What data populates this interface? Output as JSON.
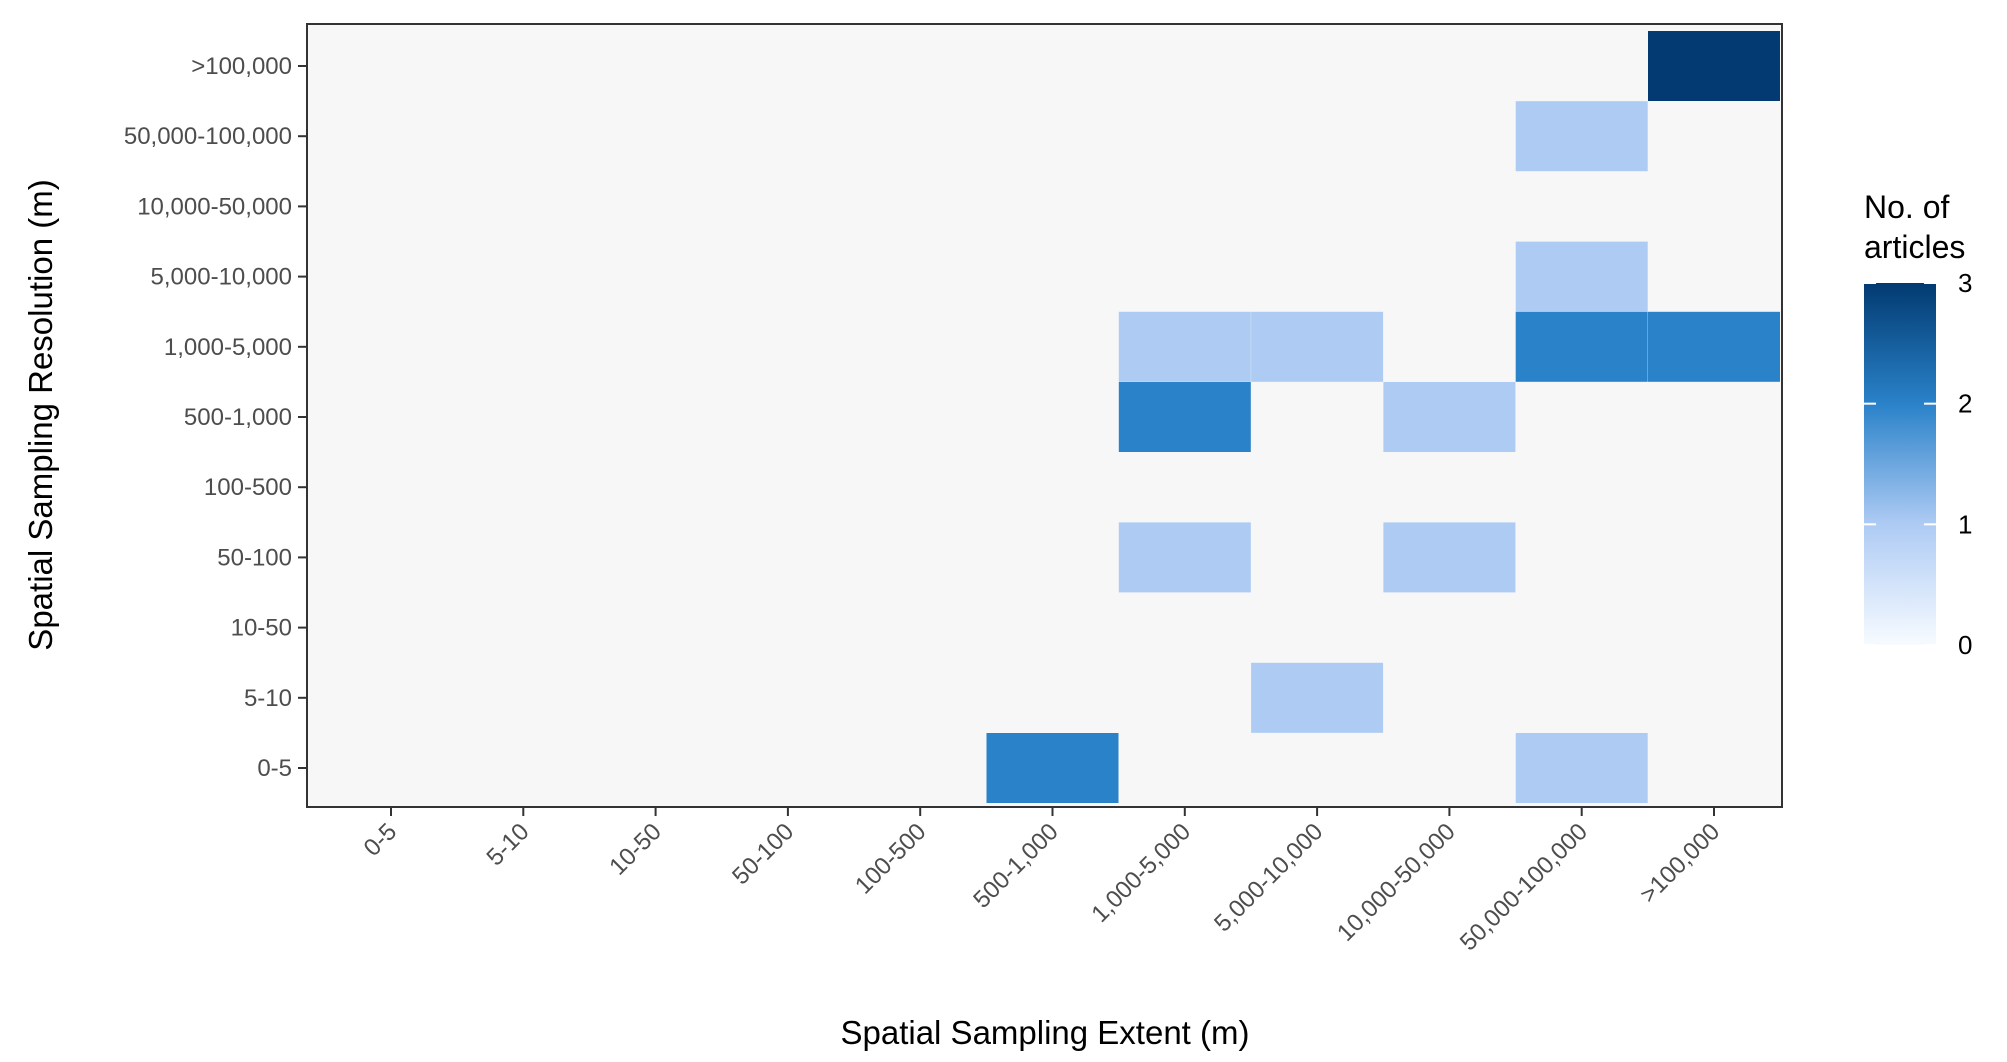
{
  "chart_data": {
    "type": "heatmap",
    "title": "",
    "xlabel": "Spatial Sampling Extent (m)",
    "ylabel": "Spatial Sampling Resolution (m)",
    "x_categories": [
      "0-5",
      "5-10",
      "10-50",
      "50-100",
      "100-500",
      "500-1,000",
      "1,000-5,000",
      "5,000-10,000",
      "10,000-50,000",
      "50,000-100,000",
      ">100,000"
    ],
    "y_categories": [
      "0-5",
      "5-10",
      "10-50",
      "50-100",
      "100-500",
      "500-1,000",
      "1,000-5,000",
      "5,000-10,000",
      "10,000-50,000",
      "50,000-100,000",
      ">100,000"
    ],
    "cells": [
      {
        "x": ">100,000",
        "y": ">100,000",
        "value": 3
      },
      {
        "x": "50,000-100,000",
        "y": "50,000-100,000",
        "value": 1
      },
      {
        "x": "50,000-100,000",
        "y": "5,000-10,000",
        "value": 1
      },
      {
        "x": "1,000-5,000",
        "y": "1,000-5,000",
        "value": 1
      },
      {
        "x": "5,000-10,000",
        "y": "1,000-5,000",
        "value": 1
      },
      {
        "x": "50,000-100,000",
        "y": "1,000-5,000",
        "value": 2
      },
      {
        "x": ">100,000",
        "y": "1,000-5,000",
        "value": 2
      },
      {
        "x": "1,000-5,000",
        "y": "500-1,000",
        "value": 2
      },
      {
        "x": "10,000-50,000",
        "y": "500-1,000",
        "value": 1
      },
      {
        "x": "1,000-5,000",
        "y": "50-100",
        "value": 1
      },
      {
        "x": "10,000-50,000",
        "y": "50-100",
        "value": 1
      },
      {
        "x": "5,000-10,000",
        "y": "5-10",
        "value": 1
      },
      {
        "x": "500-1,000",
        "y": "0-5",
        "value": 2
      },
      {
        "x": "50,000-100,000",
        "y": "0-5",
        "value": 1
      }
    ],
    "legend": {
      "title": "No. of articles",
      "title_lines": [
        "No. of",
        "articles"
      ],
      "ticks": [
        0,
        1,
        2,
        3
      ],
      "range": [
        0,
        3
      ],
      "placement": "right"
    },
    "colors": {
      "panel_background": "#f7f7f7",
      "panel_border": "#333333",
      "value_1": "#aecbf4",
      "value_2": "#2a82c9",
      "value_3": "#023a71",
      "scale_low": "#f7fbff",
      "scale_high": "#023a71"
    },
    "grid": false
  }
}
